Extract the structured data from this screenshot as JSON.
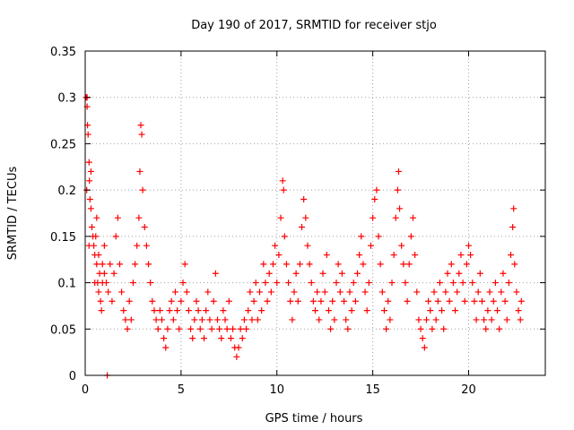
{
  "chart_data": {
    "type": "scatter",
    "title": "Day 190 of 2017, SRMTID for receiver stjo",
    "xlabel": "GPS time / hours",
    "ylabel": "SRMTID / TECUs",
    "xlim": [
      0,
      24
    ],
    "ylim": [
      0,
      0.35
    ],
    "x_ticks": [
      0,
      5,
      10,
      15,
      20
    ],
    "x_tick_labels": [
      "0",
      "5",
      "10",
      "15",
      "20"
    ],
    "y_ticks": [
      0,
      0.05,
      0.1,
      0.15,
      0.2,
      0.25,
      0.3,
      0.35
    ],
    "y_tick_labels": [
      "0",
      "0.05",
      "0.1",
      "0.15",
      "0.2",
      "0.25",
      "0.3",
      "0.35"
    ],
    "grid": "dotted",
    "marker": "plus",
    "marker_color": "#ff0000",
    "series": [
      {
        "points": [
          [
            0.05,
            0.3
          ],
          [
            0.1,
            0.29
          ],
          [
            0.12,
            0.27
          ],
          [
            0.15,
            0.26
          ],
          [
            0.2,
            0.23
          ],
          [
            0.22,
            0.21
          ],
          [
            0.25,
            0.19
          ],
          [
            0.3,
            0.18
          ],
          [
            0.35,
            0.16
          ],
          [
            0.4,
            0.15
          ],
          [
            0.45,
            0.14
          ],
          [
            0.5,
            0.13
          ],
          [
            0.55,
            0.15
          ],
          [
            0.6,
            0.12
          ],
          [
            0.65,
            0.1
          ],
          [
            0.7,
            0.09
          ],
          [
            0.75,
            0.11
          ],
          [
            0.8,
            0.08
          ],
          [
            0.85,
            0.07
          ],
          [
            0.9,
            0.1
          ],
          [
            0.1,
            0.3
          ],
          [
            0.08,
            0.2
          ],
          [
            0.3,
            0.22
          ],
          [
            0.2,
            0.14
          ],
          [
            0.5,
            0.1
          ],
          [
            0.6,
            0.17
          ],
          [
            0.7,
            0.13
          ],
          [
            0.9,
            0.12
          ],
          [
            1.0,
            0.11
          ],
          [
            1.1,
            0.1
          ],
          [
            1.0,
            0.14
          ],
          [
            1.2,
            0.09
          ],
          [
            1.3,
            0.12
          ],
          [
            1.4,
            0.08
          ],
          [
            1.5,
            0.11
          ],
          [
            1.6,
            0.15
          ],
          [
            1.7,
            0.17
          ],
          [
            1.8,
            0.12
          ],
          [
            1.9,
            0.09
          ],
          [
            2.0,
            0.07
          ],
          [
            2.1,
            0.06
          ],
          [
            2.2,
            0.05
          ],
          [
            2.3,
            0.08
          ],
          [
            2.4,
            0.06
          ],
          [
            2.5,
            0.1
          ],
          [
            2.6,
            0.12
          ],
          [
            2.7,
            0.14
          ],
          [
            2.8,
            0.17
          ],
          [
            2.85,
            0.22
          ],
          [
            2.9,
            0.27
          ],
          [
            2.95,
            0.26
          ],
          [
            3.0,
            0.2
          ],
          [
            3.1,
            0.16
          ],
          [
            3.2,
            0.14
          ],
          [
            3.3,
            0.12
          ],
          [
            3.4,
            0.1
          ],
          [
            3.5,
            0.08
          ],
          [
            3.6,
            0.07
          ],
          [
            3.7,
            0.06
          ],
          [
            3.8,
            0.05
          ],
          [
            3.9,
            0.07
          ],
          [
            4.0,
            0.06
          ],
          [
            4.1,
            0.04
          ],
          [
            4.2,
            0.03
          ],
          [
            4.3,
            0.05
          ],
          [
            4.4,
            0.07
          ],
          [
            4.5,
            0.08
          ],
          [
            4.6,
            0.06
          ],
          [
            4.7,
            0.09
          ],
          [
            4.8,
            0.07
          ],
          [
            4.9,
            0.05
          ],
          [
            5.0,
            0.08
          ],
          [
            5.1,
            0.1
          ],
          [
            5.2,
            0.12
          ],
          [
            5.3,
            0.09
          ],
          [
            5.4,
            0.07
          ],
          [
            5.5,
            0.05
          ],
          [
            5.6,
            0.04
          ],
          [
            5.7,
            0.06
          ],
          [
            5.8,
            0.08
          ],
          [
            5.9,
            0.07
          ],
          [
            6.0,
            0.05
          ],
          [
            6.1,
            0.06
          ],
          [
            6.2,
            0.04
          ],
          [
            6.3,
            0.07
          ],
          [
            6.4,
            0.09
          ],
          [
            6.5,
            0.06
          ],
          [
            6.6,
            0.05
          ],
          [
            6.7,
            0.08
          ],
          [
            6.8,
            0.11
          ],
          [
            6.9,
            0.06
          ],
          [
            7.0,
            0.05
          ],
          [
            7.1,
            0.04
          ],
          [
            7.2,
            0.07
          ],
          [
            7.3,
            0.06
          ],
          [
            7.4,
            0.05
          ],
          [
            7.5,
            0.08
          ],
          [
            7.6,
            0.04
          ],
          [
            7.7,
            0.05
          ],
          [
            7.8,
            0.03
          ],
          [
            7.9,
            0.02
          ],
          [
            8.0,
            0.03
          ],
          [
            8.1,
            0.05
          ],
          [
            8.2,
            0.04
          ],
          [
            8.3,
            0.06
          ],
          [
            8.4,
            0.05
          ],
          [
            8.5,
            0.07
          ],
          [
            8.6,
            0.09
          ],
          [
            8.7,
            0.06
          ],
          [
            8.8,
            0.08
          ],
          [
            8.9,
            0.1
          ],
          [
            9.0,
            0.06
          ],
          [
            9.1,
            0.09
          ],
          [
            9.2,
            0.07
          ],
          [
            9.3,
            0.12
          ],
          [
            9.4,
            0.1
          ],
          [
            9.5,
            0.08
          ],
          [
            9.6,
            0.11
          ],
          [
            9.7,
            0.09
          ],
          [
            9.8,
            0.12
          ],
          [
            9.9,
            0.14
          ],
          [
            10.0,
            0.1
          ],
          [
            10.1,
            0.13
          ],
          [
            10.2,
            0.17
          ],
          [
            10.3,
            0.21
          ],
          [
            10.35,
            0.2
          ],
          [
            10.4,
            0.15
          ],
          [
            10.5,
            0.12
          ],
          [
            10.6,
            0.1
          ],
          [
            10.7,
            0.08
          ],
          [
            10.8,
            0.06
          ],
          [
            10.9,
            0.09
          ],
          [
            11.0,
            0.11
          ],
          [
            11.1,
            0.08
          ],
          [
            11.2,
            0.12
          ],
          [
            11.3,
            0.16
          ],
          [
            11.4,
            0.19
          ],
          [
            11.5,
            0.17
          ],
          [
            11.6,
            0.14
          ],
          [
            11.7,
            0.12
          ],
          [
            11.8,
            0.1
          ],
          [
            11.9,
            0.08
          ],
          [
            12.0,
            0.07
          ],
          [
            12.1,
            0.09
          ],
          [
            12.2,
            0.06
          ],
          [
            12.3,
            0.08
          ],
          [
            12.4,
            0.11
          ],
          [
            12.5,
            0.09
          ],
          [
            12.6,
            0.13
          ],
          [
            12.7,
            0.07
          ],
          [
            12.8,
            0.05
          ],
          [
            12.9,
            0.08
          ],
          [
            13.0,
            0.06
          ],
          [
            13.1,
            0.1
          ],
          [
            13.2,
            0.12
          ],
          [
            13.3,
            0.09
          ],
          [
            13.4,
            0.11
          ],
          [
            13.5,
            0.08
          ],
          [
            13.6,
            0.06
          ],
          [
            13.7,
            0.05
          ],
          [
            13.8,
            0.09
          ],
          [
            13.9,
            0.07
          ],
          [
            14.0,
            0.1
          ],
          [
            14.1,
            0.08
          ],
          [
            14.2,
            0.11
          ],
          [
            14.3,
            0.13
          ],
          [
            14.4,
            0.15
          ],
          [
            14.5,
            0.12
          ],
          [
            14.6,
            0.09
          ],
          [
            14.7,
            0.07
          ],
          [
            14.8,
            0.1
          ],
          [
            14.9,
            0.14
          ],
          [
            15.0,
            0.17
          ],
          [
            15.1,
            0.19
          ],
          [
            15.2,
            0.2
          ],
          [
            15.3,
            0.15
          ],
          [
            15.4,
            0.12
          ],
          [
            15.5,
            0.09
          ],
          [
            15.6,
            0.07
          ],
          [
            15.7,
            0.05
          ],
          [
            15.8,
            0.08
          ],
          [
            15.9,
            0.06
          ],
          [
            16.0,
            0.1
          ],
          [
            16.1,
            0.13
          ],
          [
            16.2,
            0.17
          ],
          [
            16.3,
            0.2
          ],
          [
            16.35,
            0.22
          ],
          [
            16.4,
            0.18
          ],
          [
            16.5,
            0.14
          ],
          [
            16.6,
            0.12
          ],
          [
            16.7,
            0.1
          ],
          [
            16.8,
            0.08
          ],
          [
            16.9,
            0.12
          ],
          [
            17.0,
            0.15
          ],
          [
            17.1,
            0.17
          ],
          [
            17.2,
            0.13
          ],
          [
            17.3,
            0.09
          ],
          [
            17.4,
            0.06
          ],
          [
            17.5,
            0.05
          ],
          [
            17.6,
            0.04
          ],
          [
            17.7,
            0.03
          ],
          [
            17.8,
            0.06
          ],
          [
            17.9,
            0.08
          ],
          [
            18.0,
            0.07
          ],
          [
            18.1,
            0.05
          ],
          [
            18.2,
            0.09
          ],
          [
            18.3,
            0.06
          ],
          [
            18.4,
            0.08
          ],
          [
            18.5,
            0.1
          ],
          [
            18.6,
            0.07
          ],
          [
            18.7,
            0.05
          ],
          [
            18.8,
            0.09
          ],
          [
            18.9,
            0.11
          ],
          [
            19.0,
            0.08
          ],
          [
            19.1,
            0.12
          ],
          [
            19.2,
            0.1
          ],
          [
            19.3,
            0.07
          ],
          [
            19.4,
            0.09
          ],
          [
            19.5,
            0.11
          ],
          [
            19.6,
            0.13
          ],
          [
            19.7,
            0.1
          ],
          [
            19.8,
            0.08
          ],
          [
            19.9,
            0.12
          ],
          [
            20.0,
            0.14
          ],
          [
            20.1,
            0.13
          ],
          [
            20.2,
            0.1
          ],
          [
            20.3,
            0.08
          ],
          [
            20.4,
            0.06
          ],
          [
            20.5,
            0.09
          ],
          [
            20.6,
            0.11
          ],
          [
            20.7,
            0.08
          ],
          [
            20.8,
            0.06
          ],
          [
            20.9,
            0.05
          ],
          [
            21.0,
            0.07
          ],
          [
            21.1,
            0.09
          ],
          [
            21.2,
            0.06
          ],
          [
            21.3,
            0.08
          ],
          [
            21.4,
            0.1
          ],
          [
            21.5,
            0.07
          ],
          [
            21.6,
            0.05
          ],
          [
            21.7,
            0.09
          ],
          [
            21.8,
            0.11
          ],
          [
            21.9,
            0.08
          ],
          [
            22.0,
            0.06
          ],
          [
            22.1,
            0.1
          ],
          [
            22.2,
            0.13
          ],
          [
            22.3,
            0.16
          ],
          [
            22.35,
            0.18
          ],
          [
            22.4,
            0.12
          ],
          [
            22.5,
            0.09
          ],
          [
            22.6,
            0.07
          ],
          [
            22.7,
            0.06
          ],
          [
            22.75,
            0.08
          ],
          [
            1.15,
            0.0
          ]
        ]
      }
    ]
  }
}
